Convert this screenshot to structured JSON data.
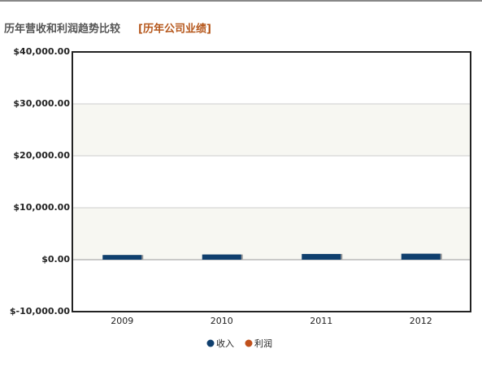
{
  "chart_data": {
    "type": "bar",
    "title": "历年营收和利润趋势比较",
    "subtitle": "[历年公司业绩]",
    "categories": [
      "2009",
      "2010",
      "2011",
      "2012"
    ],
    "series": [
      {
        "name": "收入",
        "color": "#0f3f6e",
        "values": [
          900,
          1000,
          1100,
          1150
        ]
      },
      {
        "name": "利润",
        "color": "#c0501b",
        "values": [
          null,
          null,
          null,
          null
        ]
      }
    ],
    "ylim": [
      -10000,
      40000
    ],
    "yticks": [
      {
        "value": -10000,
        "label": "$-10,000.00"
      },
      {
        "value": 0,
        "label": "$0.00"
      },
      {
        "value": 10000,
        "label": "$10,000.00"
      },
      {
        "value": 20000,
        "label": "$20,000.00"
      },
      {
        "value": 30000,
        "label": "$30,000.00"
      },
      {
        "value": 40000,
        "label": "$40,000.00"
      }
    ],
    "grid": true
  }
}
